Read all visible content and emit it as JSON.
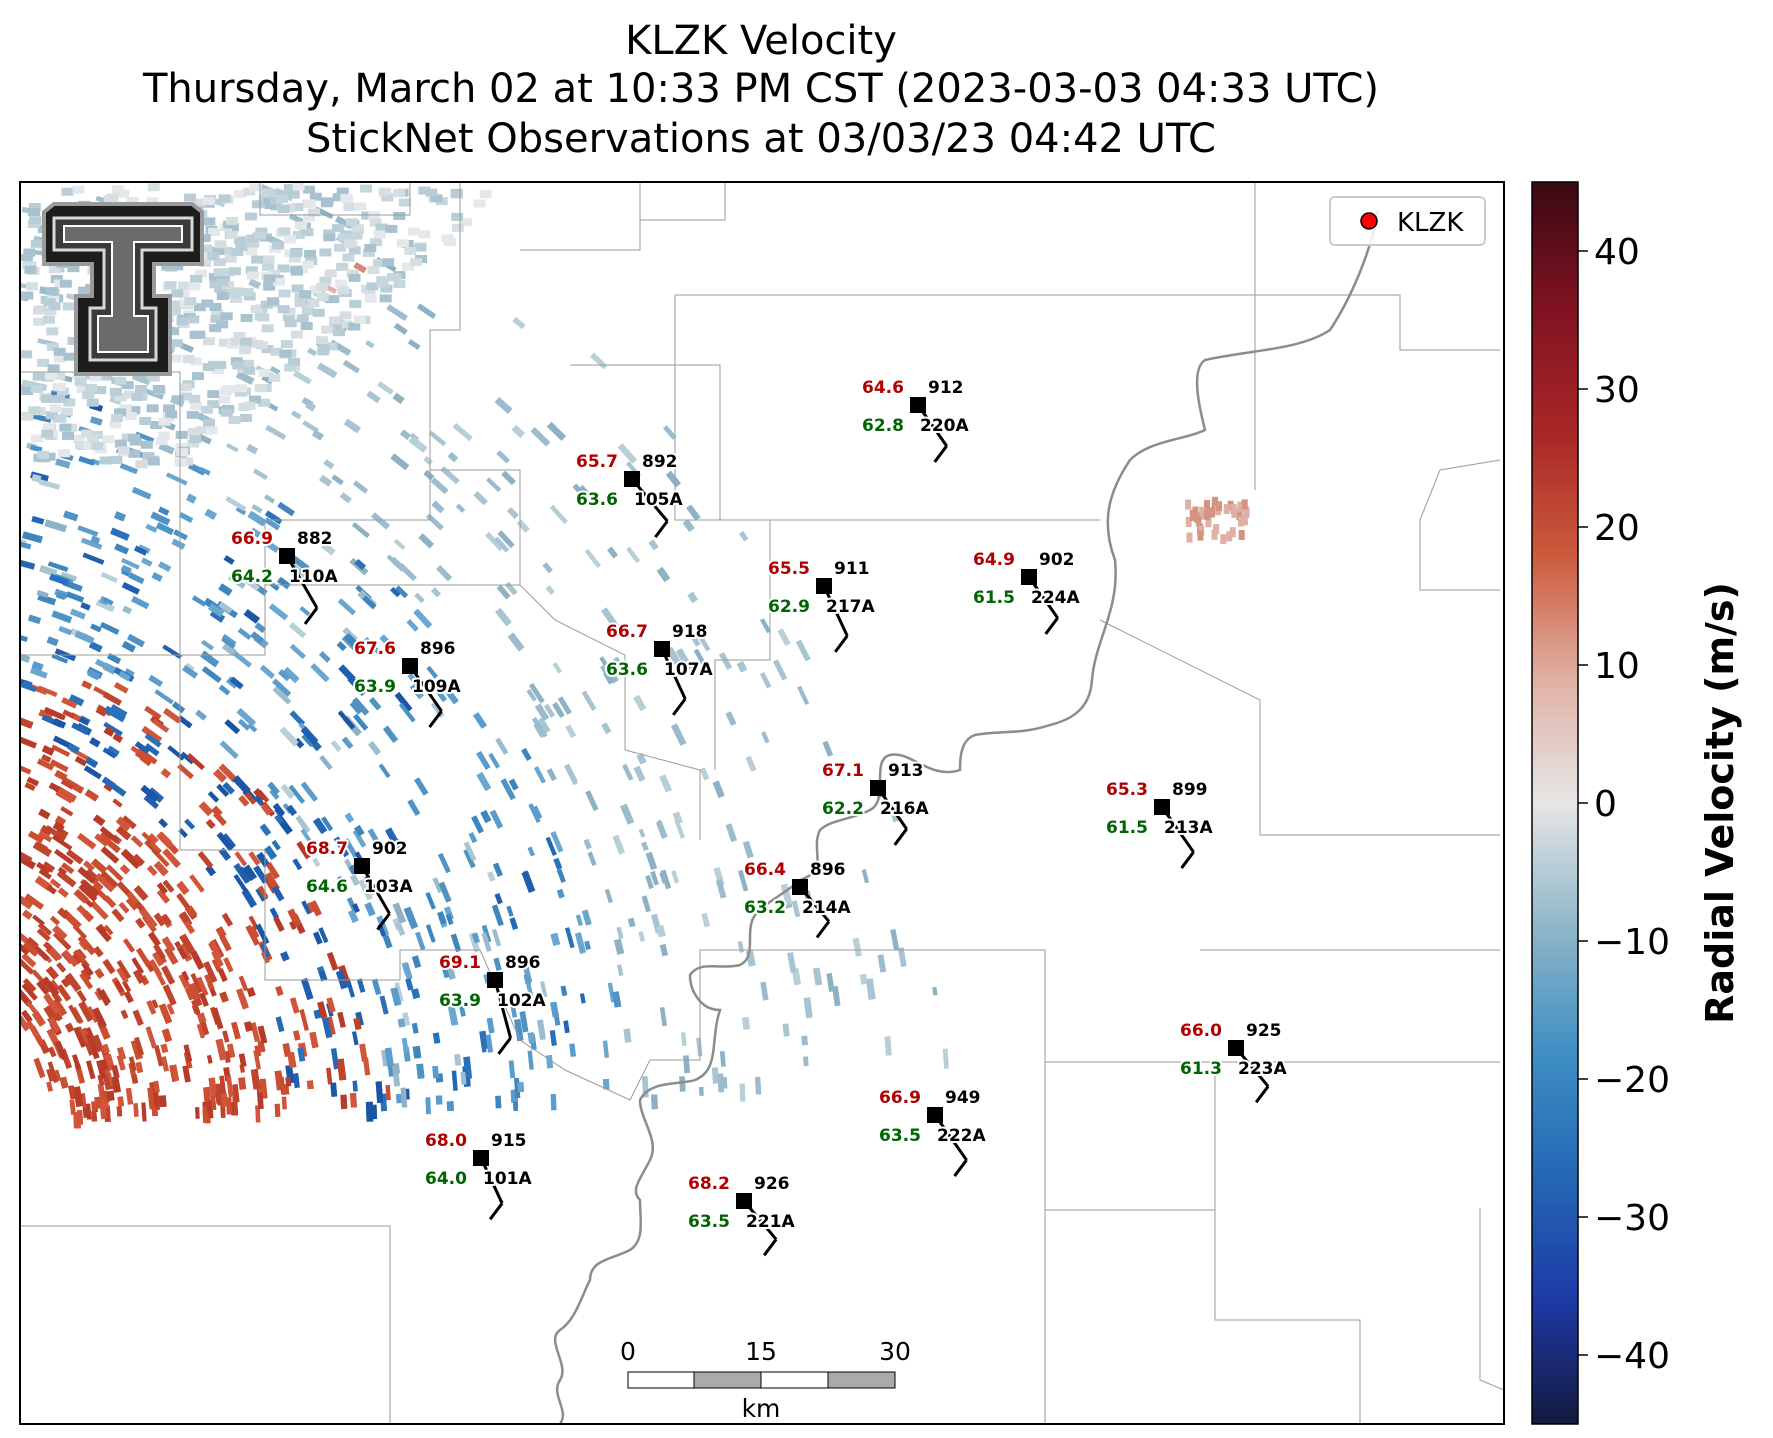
{
  "title": {
    "line1": "KLZK Velocity",
    "line2": "Thursday, March 02 at 10:33 PM CST (2023-03-03 04:33 UTC)",
    "line3": "StickNet Observations at 03/03/23 04:42 UTC"
  },
  "legend": {
    "label": "KLZK",
    "marker_color": "#ff0000"
  },
  "colorbar": {
    "label": "Radial Velocity (m/s)",
    "range": [
      -45,
      45
    ],
    "ticks": [
      "40",
      "30",
      "20",
      "10",
      "0",
      "−10",
      "−20",
      "−30",
      "−40"
    ],
    "tick_values": [
      40,
      30,
      20,
      10,
      0,
      -10,
      -20,
      -30,
      -40
    ],
    "colors": [
      "#141a3e",
      "#1e3aa6",
      "#2468b5",
      "#3f8fc4",
      "#8fb6c8",
      "#e6e6e6",
      "#e0b0a4",
      "#cc5a3c",
      "#a82626",
      "#801222",
      "#3a0a12"
    ]
  },
  "scale_bar": {
    "labels": [
      "0",
      "15",
      "30"
    ],
    "unit": "km"
  },
  "logo": {
    "name": "texas-tech-logo"
  },
  "stations": [
    {
      "id": "220A",
      "temp": "64.6",
      "dew": "62.8",
      "pres": "912"
    },
    {
      "id": "105A",
      "temp": "65.7",
      "dew": "63.6",
      "pres": "892"
    },
    {
      "id": "110A",
      "temp": "66.9",
      "dew": "64.2",
      "pres": "882"
    },
    {
      "id": "217A",
      "temp": "65.5",
      "dew": "62.9",
      "pres": "911"
    },
    {
      "id": "224A",
      "temp": "64.9",
      "dew": "61.5",
      "pres": "902"
    },
    {
      "id": "107A",
      "temp": "66.7",
      "dew": "63.6",
      "pres": "918"
    },
    {
      "id": "109A",
      "temp": "67.6",
      "dew": "63.9",
      "pres": "896"
    },
    {
      "id": "216A",
      "temp": "67.1",
      "dew": "62.2",
      "pres": "913"
    },
    {
      "id": "213A",
      "temp": "65.3",
      "dew": "61.5",
      "pres": "899"
    },
    {
      "id": "103A",
      "temp": "68.7",
      "dew": "64.6",
      "pres": "902"
    },
    {
      "id": "214A",
      "temp": "66.4",
      "dew": "63.2",
      "pres": "896"
    },
    {
      "id": "102A",
      "temp": "69.1",
      "dew": "63.9",
      "pres": "896"
    },
    {
      "id": "223A",
      "temp": "66.0",
      "dew": "61.3",
      "pres": "925"
    },
    {
      "id": "222A",
      "temp": "66.9",
      "dew": "63.5",
      "pres": "949"
    },
    {
      "id": "101A",
      "temp": "68.0",
      "dew": "64.0",
      "pres": "915"
    },
    {
      "id": "221A",
      "temp": "68.2",
      "dew": "63.5",
      "pres": "926"
    }
  ]
}
